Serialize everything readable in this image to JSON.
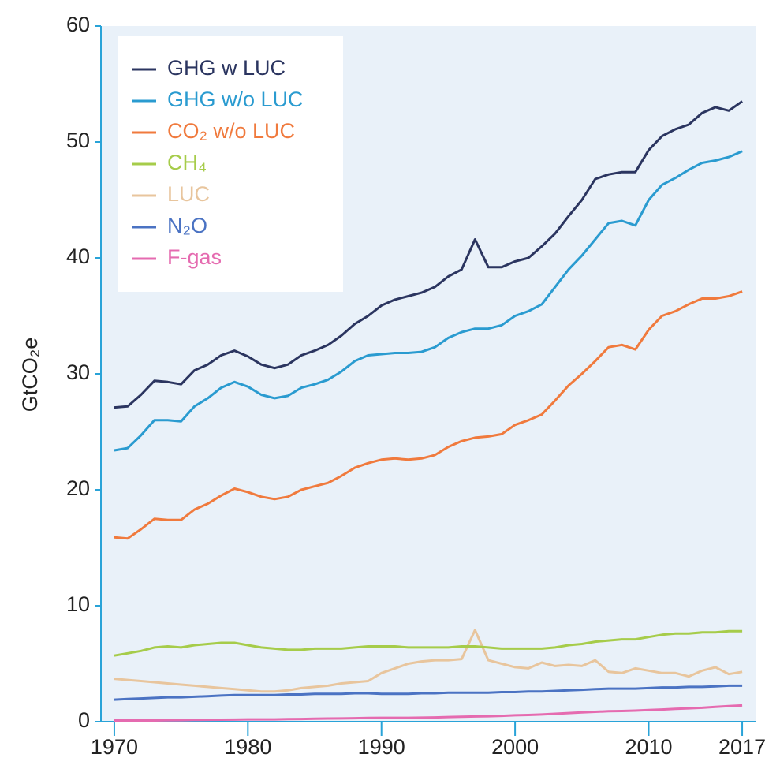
{
  "chart_data": {
    "type": "line",
    "ylabel": "GtCO₂e",
    "x": [
      1970,
      1971,
      1972,
      1973,
      1974,
      1975,
      1976,
      1977,
      1978,
      1979,
      1980,
      1981,
      1982,
      1983,
      1984,
      1985,
      1986,
      1987,
      1988,
      1989,
      1990,
      1991,
      1992,
      1993,
      1994,
      1995,
      1996,
      1997,
      1998,
      1999,
      2000,
      2001,
      2002,
      2003,
      2004,
      2005,
      2006,
      2007,
      2008,
      2009,
      2010,
      2011,
      2012,
      2013,
      2014,
      2015,
      2016,
      2017
    ],
    "xlim": [
      1969,
      2018
    ],
    "xticks": [
      1970,
      1980,
      1990,
      2000,
      2010,
      2017
    ],
    "ylim": [
      0,
      60
    ],
    "yticks": [
      0,
      10,
      20,
      30,
      40,
      50,
      60
    ],
    "legend": "upper left",
    "series": [
      {
        "name": "GHG w LUC",
        "color": "#2b3560",
        "values": [
          27.1,
          27.2,
          28.2,
          29.4,
          29.3,
          29.1,
          30.3,
          30.8,
          31.6,
          32.0,
          31.5,
          30.8,
          30.5,
          30.8,
          31.6,
          32.0,
          32.5,
          33.3,
          34.3,
          35.0,
          35.9,
          36.4,
          36.7,
          37.0,
          37.5,
          38.4,
          39.0,
          41.6,
          39.2,
          39.2,
          39.7,
          40.0,
          41.0,
          42.1,
          43.6,
          45.0,
          46.8,
          47.2,
          47.4,
          47.4,
          49.3,
          50.5,
          51.1,
          51.5,
          52.5,
          53.0,
          52.7,
          53.5
        ]
      },
      {
        "name": "GHG w/o LUC",
        "color": "#2a9bd0",
        "values": [
          23.4,
          23.6,
          24.7,
          26.0,
          26.0,
          25.9,
          27.2,
          27.9,
          28.8,
          29.3,
          28.9,
          28.2,
          27.9,
          28.1,
          28.8,
          29.1,
          29.5,
          30.2,
          31.1,
          31.6,
          31.7,
          31.8,
          31.8,
          31.9,
          32.3,
          33.1,
          33.6,
          33.9,
          33.9,
          34.2,
          35.0,
          35.4,
          36.0,
          37.5,
          39.0,
          40.2,
          41.6,
          43.0,
          43.2,
          42.8,
          45.0,
          46.3,
          46.9,
          47.6,
          48.2,
          48.4,
          48.7,
          49.2
        ]
      },
      {
        "name": "CO₂ w/o LUC",
        "color": "#f07a3d",
        "values": [
          15.9,
          15.8,
          16.6,
          17.5,
          17.4,
          17.4,
          18.3,
          18.8,
          19.5,
          20.1,
          19.8,
          19.4,
          19.2,
          19.4,
          20.0,
          20.3,
          20.6,
          21.2,
          21.9,
          22.3,
          22.6,
          22.7,
          22.6,
          22.7,
          23.0,
          23.7,
          24.2,
          24.5,
          24.6,
          24.8,
          25.6,
          26.0,
          26.5,
          27.7,
          29.0,
          30.0,
          31.1,
          32.3,
          32.5,
          32.1,
          33.8,
          35.0,
          35.4,
          36.0,
          36.5,
          36.5,
          36.7,
          37.1
        ]
      },
      {
        "name": "CH₄",
        "color": "#a6cc4a",
        "values": [
          5.7,
          5.9,
          6.1,
          6.4,
          6.5,
          6.4,
          6.6,
          6.7,
          6.8,
          6.8,
          6.6,
          6.4,
          6.3,
          6.2,
          6.2,
          6.3,
          6.3,
          6.3,
          6.4,
          6.5,
          6.5,
          6.5,
          6.4,
          6.4,
          6.4,
          6.4,
          6.5,
          6.5,
          6.4,
          6.3,
          6.3,
          6.3,
          6.3,
          6.4,
          6.6,
          6.7,
          6.9,
          7.0,
          7.1,
          7.1,
          7.3,
          7.5,
          7.6,
          7.6,
          7.7,
          7.7,
          7.8,
          7.8
        ]
      },
      {
        "name": "LUC",
        "color": "#e8c59d",
        "values": [
          3.7,
          3.6,
          3.5,
          3.4,
          3.3,
          3.2,
          3.1,
          3.0,
          2.9,
          2.8,
          2.7,
          2.6,
          2.6,
          2.7,
          2.9,
          3.0,
          3.1,
          3.3,
          3.4,
          3.5,
          4.2,
          4.6,
          5.0,
          5.2,
          5.3,
          5.3,
          5.4,
          7.9,
          5.3,
          5.0,
          4.7,
          4.6,
          5.1,
          4.8,
          4.9,
          4.8,
          5.3,
          4.3,
          4.2,
          4.6,
          4.4,
          4.2,
          4.2,
          3.9,
          4.4,
          4.7,
          4.1,
          4.3
        ]
      },
      {
        "name": "N₂O",
        "color": "#4b73c3",
        "values": [
          1.9,
          1.95,
          2.0,
          2.05,
          2.1,
          2.1,
          2.15,
          2.2,
          2.25,
          2.3,
          2.3,
          2.3,
          2.3,
          2.35,
          2.35,
          2.4,
          2.4,
          2.4,
          2.45,
          2.45,
          2.4,
          2.4,
          2.4,
          2.45,
          2.45,
          2.5,
          2.5,
          2.5,
          2.5,
          2.55,
          2.55,
          2.6,
          2.6,
          2.65,
          2.7,
          2.75,
          2.8,
          2.85,
          2.85,
          2.85,
          2.9,
          2.95,
          2.95,
          3.0,
          3.0,
          3.05,
          3.1,
          3.1
        ]
      },
      {
        "name": "F-gas",
        "color": "#e56bb0",
        "values": [
          0.1,
          0.1,
          0.1,
          0.1,
          0.12,
          0.13,
          0.15,
          0.16,
          0.17,
          0.18,
          0.2,
          0.2,
          0.2,
          0.22,
          0.23,
          0.25,
          0.27,
          0.28,
          0.3,
          0.32,
          0.33,
          0.33,
          0.33,
          0.35,
          0.37,
          0.4,
          0.42,
          0.45,
          0.47,
          0.5,
          0.55,
          0.58,
          0.62,
          0.68,
          0.74,
          0.8,
          0.85,
          0.9,
          0.92,
          0.95,
          1.0,
          1.05,
          1.1,
          1.15,
          1.2,
          1.28,
          1.35,
          1.4
        ]
      }
    ]
  }
}
